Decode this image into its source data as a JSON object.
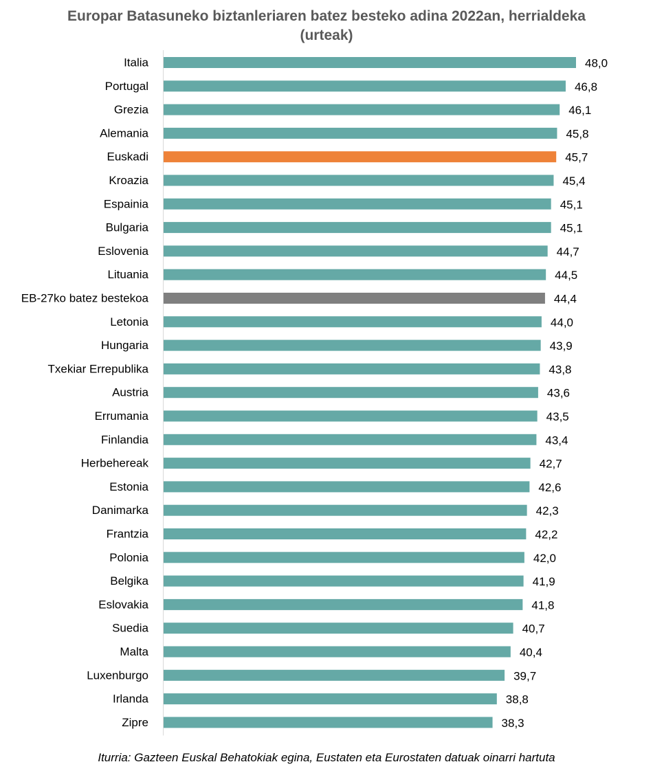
{
  "chart_data": {
    "type": "bar",
    "orientation": "horizontal",
    "title_lines": [
      "Europar Batasuneko biztanleriaren batez besteko adina 2022an, herrialdeka",
      "(urteak)"
    ],
    "categories": [
      "Italia",
      "Portugal",
      "Grezia",
      "Alemania",
      "Euskadi",
      "Kroazia",
      "Espainia",
      "Bulgaria",
      "Eslovenia",
      "Lituania",
      "EB-27ko batez bestekoa",
      "Letonia",
      "Hungaria",
      "Txekiar Errepublika",
      "Austria",
      "Errumania",
      "Finlandia",
      "Herbehereak",
      "Estonia",
      "Danimarka",
      "Frantzia",
      "Polonia",
      "Belgika",
      "Eslovakia",
      "Suedia",
      "Malta",
      "Luxenburgo",
      "Irlanda",
      "Zipre"
    ],
    "values": [
      48.0,
      46.8,
      46.1,
      45.8,
      45.7,
      45.4,
      45.1,
      45.1,
      44.7,
      44.5,
      44.4,
      44.0,
      43.9,
      43.8,
      43.6,
      43.5,
      43.4,
      42.7,
      42.6,
      42.3,
      42.2,
      42.0,
      41.9,
      41.8,
      40.7,
      40.4,
      39.7,
      38.8,
      38.3
    ],
    "value_labels": [
      "48,0",
      "46,8",
      "46,1",
      "45,8",
      "45,7",
      "45,4",
      "45,1",
      "45,1",
      "44,7",
      "44,5",
      "44,4",
      "44,0",
      "43,9",
      "43,8",
      "43,6",
      "43,5",
      "43,4",
      "42,7",
      "42,6",
      "42,3",
      "42,2",
      "42,0",
      "41,9",
      "41,8",
      "40,7",
      "40,4",
      "39,7",
      "38,8",
      "38,3"
    ],
    "xlim": [
      0,
      48
    ],
    "grid": false,
    "legend": "none",
    "colors": {
      "default": "#65a9a6",
      "highlight_euskadi": "#ee8238",
      "highlight_eu27": "#7f7f7f",
      "axis": "#d9d9d9",
      "title": "#595959"
    },
    "highlights": {
      "Euskadi": "highlight_euskadi",
      "EB-27ko batez bestekoa": "highlight_eu27"
    }
  },
  "source_note": "Iturria: Gazteen Euskal Behatokiak egina, Eustaten eta Eurostaten datuak oinarri hartuta"
}
